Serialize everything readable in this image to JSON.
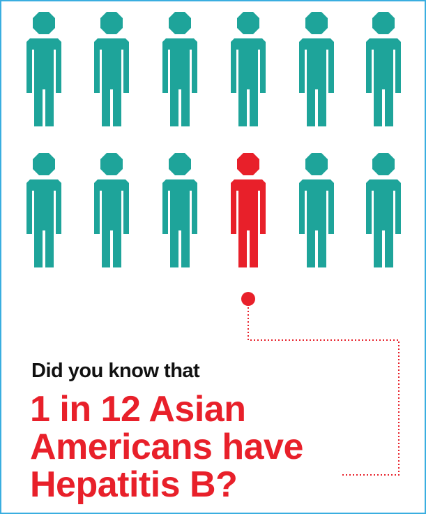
{
  "intro": "Did you know that",
  "headline": [
    "1 in 12 Asian",
    "Americans have",
    "Hepatitis B?"
  ]
}
